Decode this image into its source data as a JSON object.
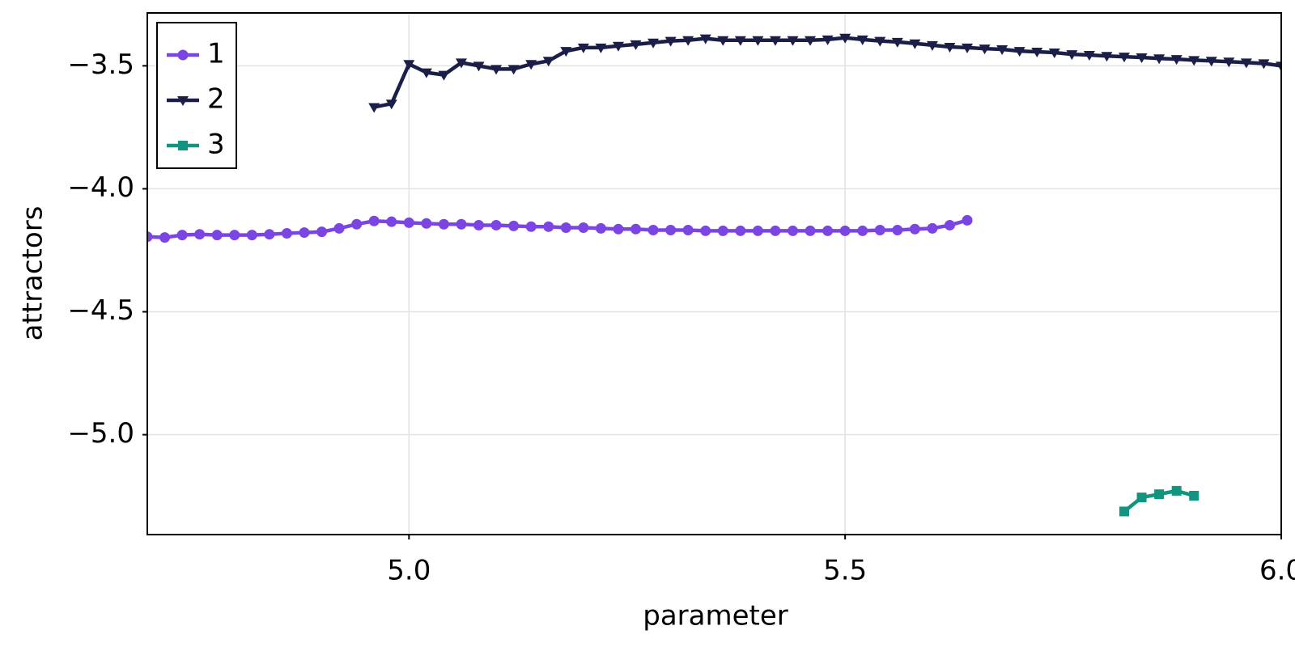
{
  "chart_data": {
    "type": "line",
    "xlabel": "parameter",
    "ylabel": "attractors",
    "xlim": [
      4.7,
      6.0
    ],
    "ylim": [
      -5.406,
      -3.285
    ],
    "xticks": [
      {
        "value": 5.0,
        "label": "5.0"
      },
      {
        "value": 5.5,
        "label": "5.5"
      },
      {
        "value": 6.0,
        "label": "6.0"
      }
    ],
    "yticks": [
      {
        "value": -3.5,
        "label": "−3.5"
      },
      {
        "value": -4.0,
        "label": "−4.0"
      },
      {
        "value": -4.5,
        "label": "−4.5"
      },
      {
        "value": -5.0,
        "label": "−5.0"
      }
    ],
    "grid": true,
    "legend": "top-left",
    "series": [
      {
        "name": "1",
        "color": "#7b45e4",
        "marker": "circle",
        "x": [
          4.7,
          4.72,
          4.74,
          4.76,
          4.78,
          4.8,
          4.82,
          4.84,
          4.86,
          4.88,
          4.9,
          4.92,
          4.94,
          4.96,
          4.98,
          5.0,
          5.02,
          5.04,
          5.06,
          5.08,
          5.1,
          5.12,
          5.14,
          5.16,
          5.18,
          5.2,
          5.22,
          5.24,
          5.26,
          5.28,
          5.3,
          5.32,
          5.34,
          5.36,
          5.38,
          5.4,
          5.42,
          5.44,
          5.46,
          5.48,
          5.5,
          5.52,
          5.54,
          5.56,
          5.58,
          5.6,
          5.62,
          5.64
        ],
        "values": [
          -4.195,
          -4.198,
          -4.188,
          -4.185,
          -4.188,
          -4.188,
          -4.188,
          -4.185,
          -4.181,
          -4.178,
          -4.175,
          -4.161,
          -4.144,
          -4.131,
          -4.134,
          -4.138,
          -4.141,
          -4.144,
          -4.144,
          -4.148,
          -4.148,
          -4.151,
          -4.154,
          -4.154,
          -4.158,
          -4.158,
          -4.161,
          -4.164,
          -4.164,
          -4.168,
          -4.168,
          -4.168,
          -4.171,
          -4.171,
          -4.171,
          -4.171,
          -4.171,
          -4.171,
          -4.171,
          -4.171,
          -4.171,
          -4.171,
          -4.168,
          -4.168,
          -4.164,
          -4.161,
          -4.148,
          -4.128
        ]
      },
      {
        "name": "2",
        "color": "#1b1f48",
        "marker": "triangle-down",
        "x": [
          4.96,
          4.98,
          5.0,
          5.02,
          5.04,
          5.06,
          5.08,
          5.1,
          5.12,
          5.14,
          5.16,
          5.18,
          5.2,
          5.22,
          5.24,
          5.26,
          5.28,
          5.3,
          5.32,
          5.34,
          5.36,
          5.38,
          5.4,
          5.42,
          5.44,
          5.46,
          5.48,
          5.5,
          5.52,
          5.54,
          5.56,
          5.58,
          5.6,
          5.62,
          5.64,
          5.66,
          5.68,
          5.7,
          5.72,
          5.74,
          5.76,
          5.78,
          5.8,
          5.82,
          5.84,
          5.86,
          5.88,
          5.9,
          5.92,
          5.94,
          5.96,
          5.98,
          6.0
        ],
        "values": [
          -3.668,
          -3.654,
          -3.493,
          -3.527,
          -3.537,
          -3.487,
          -3.5,
          -3.513,
          -3.513,
          -3.493,
          -3.48,
          -3.44,
          -3.426,
          -3.426,
          -3.419,
          -3.413,
          -3.406,
          -3.399,
          -3.396,
          -3.389,
          -3.396,
          -3.396,
          -3.396,
          -3.396,
          -3.396,
          -3.396,
          -3.393,
          -3.386,
          -3.393,
          -3.399,
          -3.403,
          -3.409,
          -3.416,
          -3.423,
          -3.426,
          -3.43,
          -3.433,
          -3.44,
          -3.443,
          -3.446,
          -3.453,
          -3.456,
          -3.46,
          -3.463,
          -3.466,
          -3.47,
          -3.473,
          -3.477,
          -3.48,
          -3.483,
          -3.487,
          -3.49,
          -3.5
        ]
      },
      {
        "name": "3",
        "color": "#119480",
        "marker": "square",
        "x": [
          5.82,
          5.84,
          5.86,
          5.88,
          5.9
        ],
        "values": [
          -5.312,
          -5.255,
          -5.242,
          -5.228,
          -5.248
        ]
      }
    ]
  }
}
